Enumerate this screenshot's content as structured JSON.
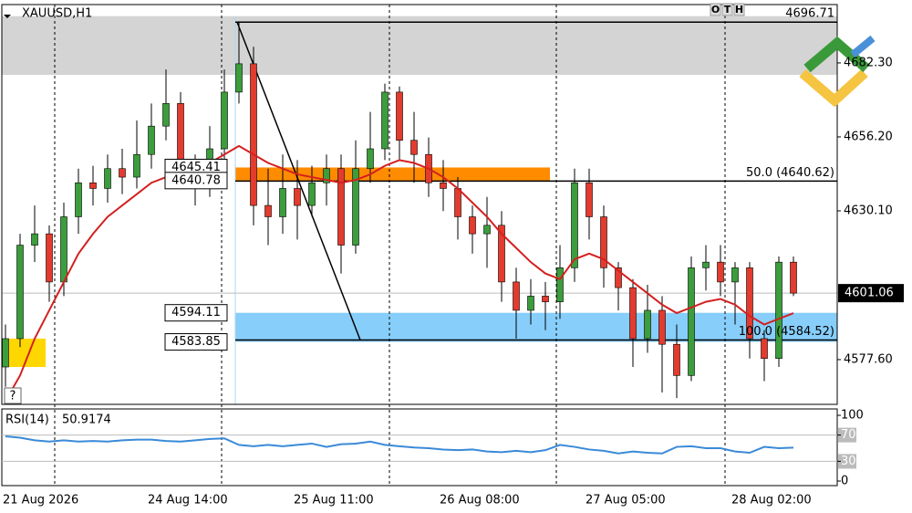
{
  "chart_data": {
    "type": "candlestick",
    "title": "XAUUSD,H1",
    "categories": [
      "21 Aug 2026",
      null,
      null,
      null,
      null,
      null,
      null,
      null,
      null,
      null,
      "24 Aug 14:00",
      null,
      null,
      null,
      null,
      null,
      null,
      null,
      null,
      null,
      "25 Aug 11:00",
      null,
      null,
      null,
      null,
      null,
      null,
      null,
      null,
      null,
      "26 Aug 08:00",
      null,
      null,
      null,
      null,
      null,
      null,
      null,
      null,
      null,
      "27 Aug 05:00",
      null,
      null,
      null,
      null,
      null,
      null,
      null,
      null,
      null,
      "28 Aug 02:00",
      null,
      null,
      null,
      null
    ],
    "open": [
      4575,
      4585,
      4618,
      4622,
      4605,
      4628,
      4640,
      4638,
      4645,
      4642,
      4650,
      4660,
      4668,
      4645,
      4640,
      4652,
      4672,
      4682,
      4632,
      4628,
      4638,
      4632,
      4640,
      4645,
      4618,
      4645,
      4652,
      4672,
      4655,
      4650,
      4640,
      4638,
      4628,
      4622,
      4625,
      4605,
      4595,
      4600,
      4598,
      4610,
      4640,
      4628,
      4610,
      4603,
      4585,
      4595,
      4583,
      4572,
      4610,
      4612,
      4605,
      4610,
      4585,
      4578,
      4612
    ],
    "high": [
      4590,
      4622,
      4632,
      4625,
      4633,
      4645,
      4646,
      4650,
      4652,
      4662,
      4668,
      4680,
      4672,
      4650,
      4660,
      4680,
      4697,
      4688,
      4645,
      4650,
      4648,
      4646,
      4650,
      4650,
      4655,
      4665,
      4675,
      4674,
      4665,
      4656,
      4648,
      4642,
      4632,
      4635,
      4630,
      4610,
      4606,
      4605,
      4618,
      4645,
      4645,
      4632,
      4612,
      4606,
      4604,
      4600,
      4590,
      4614,
      4618,
      4618,
      4612,
      4612,
      4588,
      4614,
      4614
    ],
    "low": [
      4568,
      4582,
      4612,
      4598,
      4600,
      4622,
      4632,
      4633,
      4636,
      4638,
      4645,
      4655,
      4638,
      4632,
      4635,
      4648,
      4668,
      4625,
      4618,
      4622,
      4620,
      4628,
      4632,
      4608,
      4615,
      4640,
      4648,
      4648,
      4640,
      4635,
      4630,
      4620,
      4615,
      4610,
      4598,
      4585,
      4590,
      4588,
      4592,
      4605,
      4620,
      4603,
      4595,
      4575,
      4580,
      4566,
      4564,
      4570,
      4602,
      4600,
      4590,
      4578,
      4570,
      4575,
      4600
    ],
    "close": [
      4585,
      4618,
      4622,
      4605,
      4628,
      4640,
      4638,
      4645,
      4642,
      4650,
      4660,
      4668,
      4645,
      4640,
      4652,
      4672,
      4682,
      4632,
      4628,
      4638,
      4632,
      4640,
      4645,
      4618,
      4645,
      4652,
      4672,
      4655,
      4650,
      4640,
      4638,
      4628,
      4622,
      4625,
      4605,
      4595,
      4600,
      4598,
      4610,
      4640,
      4628,
      4610,
      4603,
      4585,
      4595,
      4583,
      4572,
      4610,
      4612,
      4605,
      4610,
      4585,
      4578,
      4612,
      4601.06
    ],
    "up_color": "#3c9d3c",
    "down_color": "#e33b2e",
    "ma": {
      "color": "#d42020",
      "values": [
        4563,
        4572,
        4585,
        4595,
        4605,
        4615,
        4622,
        4628,
        4632,
        4636,
        4640,
        4642,
        4643,
        4645,
        4647,
        4650,
        4653,
        4650,
        4647,
        4645,
        4643,
        4642,
        4641,
        4640,
        4641,
        4643,
        4646,
        4648,
        4647,
        4645,
        4642,
        4638,
        4633,
        4628,
        4622,
        4617,
        4612,
        4608,
        4606,
        4613,
        4615,
        4613,
        4609,
        4605,
        4601,
        4597,
        4594,
        4596,
        4598,
        4599,
        4597,
        4593,
        4590,
        4592,
        4594
      ]
    },
    "ylim": [
      4561.8,
      4702.9
    ],
    "yticks": [
      {
        "value": 4682.3,
        "label": "4682.30"
      },
      {
        "value": 4656.2,
        "label": "4656.20"
      },
      {
        "value": 4630.1,
        "label": "4630.10"
      },
      {
        "value": 4577.6,
        "label": "4577.60"
      }
    ],
    "levels": [
      {
        "value": 4696.71,
        "label": "4696.71"
      },
      {
        "value": 4640.62,
        "label": "50.0 (4640.62)"
      },
      {
        "value": 4584.52,
        "label": "100.0 (4584.52)"
      }
    ],
    "zones": [
      {
        "from": 4678.1,
        "to": 4698.8,
        "color": "#d4d4d4"
      },
      {
        "from": 4640.78,
        "to": 4645.41,
        "color": "#ff8c00"
      },
      {
        "from": 4583.85,
        "to": 4594.11,
        "color": "#87cefa"
      },
      {
        "from": 4575,
        "to": 4585,
        "color": "#ffd700"
      }
    ],
    "rsi": {
      "name": "RSI(14)",
      "color": "#3a8ad8",
      "ylim": [
        0,
        100
      ],
      "yticks": [
        100,
        70,
        30,
        0
      ],
      "levels": [
        70,
        30
      ],
      "values": [
        68,
        66,
        62,
        60,
        62,
        60,
        61,
        60,
        62,
        63,
        63,
        61,
        60,
        62,
        64,
        65,
        55,
        53,
        55,
        53,
        55,
        57,
        52,
        56,
        57,
        60,
        55,
        53,
        51,
        50,
        48,
        47,
        48,
        45,
        44,
        46,
        44,
        47,
        55,
        52,
        48,
        46,
        42,
        45,
        43,
        42,
        52,
        53,
        50,
        50,
        45,
        43,
        52,
        50,
        50.9174
      ]
    }
  },
  "toolbar": [
    "O",
    "T",
    "H"
  ],
  "help": "?"
}
